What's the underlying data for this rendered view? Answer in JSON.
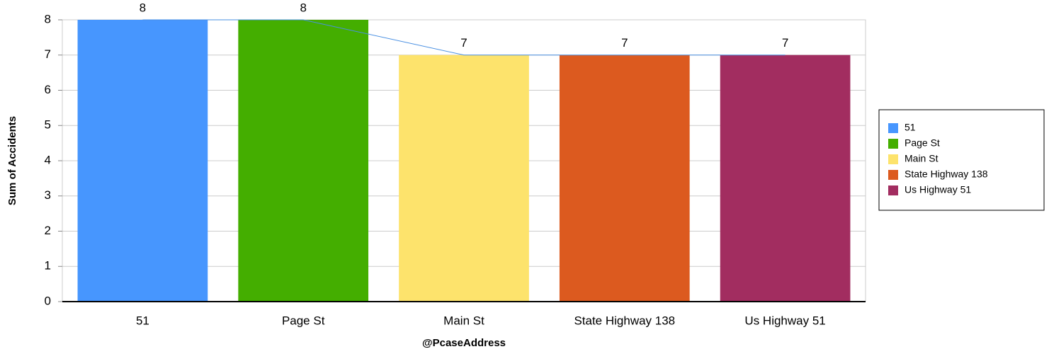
{
  "chart_data": {
    "type": "bar",
    "x_label": "@PcaseAddress",
    "y_label": "Sum of Accidents",
    "categories": [
      "51",
      "Page St",
      "Main St",
      "State Highway 138",
      "Us Highway 51"
    ],
    "values": [
      8,
      8,
      7,
      7,
      7
    ],
    "colors": [
      "#4796fe",
      "#44ae00",
      "#fde36c",
      "#dc5a1f",
      "#a22d60"
    ],
    "line_color": "#4a90e2",
    "ylim": [
      0,
      8
    ],
    "yticks": [
      0,
      1,
      2,
      3,
      4,
      5,
      6,
      7,
      8
    ],
    "grid": true,
    "legend": "right"
  }
}
